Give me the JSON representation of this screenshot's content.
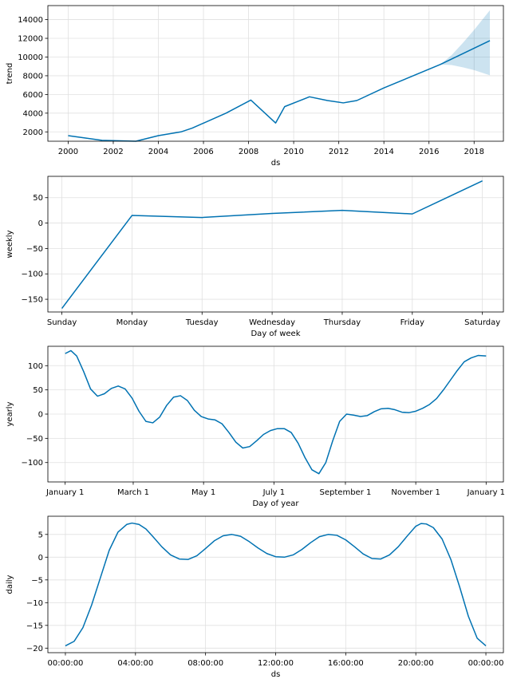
{
  "colors": {
    "line": "#0072B2",
    "band": "#0072B2",
    "grid": "#e0e0e0"
  },
  "chart_data": [
    {
      "type": "line",
      "id": "trend",
      "xlabel": "ds",
      "ylabel": "trend",
      "xlim": [
        1999.1,
        2019.3
      ],
      "ylim": [
        1000,
        15500
      ],
      "xticks": [
        2000,
        2002,
        2004,
        2006,
        2008,
        2010,
        2012,
        2014,
        2016,
        2018
      ],
      "xticklabels": [
        "2000",
        "2002",
        "2004",
        "2006",
        "2008",
        "2010",
        "2012",
        "2014",
        "2016",
        "2018"
      ],
      "yticks": [
        2000,
        4000,
        6000,
        8000,
        10000,
        12000,
        14000
      ],
      "yticklabels": [
        "2000",
        "4000",
        "6000",
        "8000",
        "10000",
        "12000",
        "14000"
      ],
      "x": [
        2000.0,
        2001.5,
        2003.0,
        2004.0,
        2005.0,
        2005.5,
        2007.0,
        2008.1,
        2009.2,
        2009.6,
        2010.7,
        2011.5,
        2012.2,
        2012.8,
        2014.0,
        2016.5,
        2018.7
      ],
      "values": [
        1600,
        1100,
        1000,
        1600,
        2000,
        2400,
        4000,
        5400,
        2950,
        4700,
        5750,
        5350,
        5100,
        5350,
        6700,
        9200,
        11750
      ],
      "uncertainty": {
        "x": [
          2016.5,
          2017.0,
          2017.5,
          2018.0,
          2018.7
        ],
        "upper": [
          9200,
          10200,
          11500,
          12900,
          15000
        ],
        "lower": [
          9200,
          9150,
          8900,
          8600,
          8050
        ]
      }
    },
    {
      "type": "line",
      "id": "weekly",
      "xlabel": "Day of week",
      "ylabel": "weekly",
      "xlim": [
        -0.2,
        6.3
      ],
      "ylim": [
        -175,
        92
      ],
      "xticks": [
        0,
        1,
        2,
        3,
        4,
        5,
        6
      ],
      "xticklabels": [
        "Sunday",
        "Monday",
        "Tuesday",
        "Wednesday",
        "Thursday",
        "Friday",
        "Saturday"
      ],
      "yticks": [
        -150,
        -100,
        -50,
        0,
        50
      ],
      "yticklabels": [
        "−150",
        "−100",
        "−50",
        "0",
        "50"
      ],
      "x": [
        0,
        1,
        2,
        3,
        4,
        5,
        6
      ],
      "values": [
        -168,
        15,
        11,
        19,
        25,
        18,
        83
      ]
    },
    {
      "type": "line",
      "id": "yearly",
      "xlabel": "Day of year",
      "ylabel": "yearly",
      "xlim": [
        -15,
        380
      ],
      "ylim": [
        -140,
        140
      ],
      "xticks": [
        0,
        59,
        120,
        181,
        243,
        304,
        365
      ],
      "xticklabels": [
        "January 1",
        "March 1",
        "May 1",
        "July 1",
        "September 1",
        "November 1",
        "January 1"
      ],
      "yticks": [
        -100,
        -50,
        0,
        50,
        100
      ],
      "yticklabels": [
        "−100",
        "−50",
        "0",
        "50",
        "100"
      ],
      "x": [
        0,
        5,
        10,
        16,
        22,
        28,
        34,
        40,
        46,
        52,
        58,
        64,
        70,
        76,
        82,
        88,
        94,
        100,
        106,
        112,
        118,
        124,
        130,
        136,
        142,
        148,
        154,
        160,
        166,
        172,
        178,
        184,
        190,
        196,
        202,
        208,
        214,
        220,
        226,
        232,
        238,
        244,
        250,
        256,
        262,
        268,
        274,
        280,
        286,
        292,
        298,
        304,
        310,
        316,
        322,
        328,
        334,
        340,
        346,
        352,
        358,
        365
      ],
      "values": [
        125,
        131,
        120,
        88,
        52,
        37,
        42,
        53,
        58,
        52,
        33,
        6,
        -15,
        -18,
        -6,
        18,
        35,
        38,
        28,
        8,
        -5,
        -10,
        -12,
        -20,
        -38,
        -58,
        -70,
        -67,
        -55,
        -42,
        -34,
        -30,
        -30,
        -38,
        -60,
        -90,
        -115,
        -123,
        -100,
        -55,
        -15,
        0,
        -2,
        -5,
        -3,
        5,
        11,
        12,
        9,
        4,
        3,
        6,
        12,
        20,
        32,
        50,
        70,
        90,
        108,
        116,
        121,
        120
      ]
    },
    {
      "type": "line",
      "id": "daily",
      "xlabel": "ds",
      "ylabel": "daily",
      "xlim": [
        -1,
        25
      ],
      "ylim": [
        -21,
        9
      ],
      "xticks": [
        0,
        4,
        8,
        12,
        16,
        20,
        24
      ],
      "xticklabels": [
        "00:00:00",
        "04:00:00",
        "08:00:00",
        "12:00:00",
        "16:00:00",
        "20:00:00",
        "00:00:00"
      ],
      "yticks": [
        -20,
        -15,
        -10,
        -5,
        0,
        5
      ],
      "yticklabels": [
        "−20",
        "−15",
        "−10",
        "−5",
        "0",
        "5"
      ],
      "x": [
        0,
        0.5,
        1,
        1.5,
        2,
        2.5,
        3,
        3.5,
        3.8,
        4.2,
        4.6,
        5,
        5.5,
        6,
        6.5,
        7,
        7.5,
        8,
        8.5,
        9,
        9.5,
        10,
        10.5,
        11,
        11.5,
        12,
        12.5,
        13,
        13.5,
        14,
        14.5,
        15,
        15.5,
        16,
        16.5,
        17,
        17.5,
        18,
        18.5,
        19,
        19.5,
        20,
        20.3,
        20.6,
        21,
        21.5,
        22,
        22.5,
        23,
        23.5,
        24
      ],
      "values": [
        -19.5,
        -18.5,
        -15.5,
        -10.5,
        -4.5,
        1.5,
        5.5,
        7.2,
        7.5,
        7.2,
        6.2,
        4.5,
        2.3,
        0.5,
        -0.4,
        -0.5,
        0.3,
        1.9,
        3.6,
        4.7,
        5.0,
        4.6,
        3.4,
        2.0,
        0.8,
        0.1,
        0.0,
        0.5,
        1.7,
        3.2,
        4.5,
        5.0,
        4.8,
        3.8,
        2.3,
        0.7,
        -0.3,
        -0.4,
        0.5,
        2.3,
        4.6,
        6.8,
        7.4,
        7.3,
        6.5,
        4.0,
        -0.5,
        -6.5,
        -13.0,
        -17.8,
        -19.5
      ]
    }
  ]
}
